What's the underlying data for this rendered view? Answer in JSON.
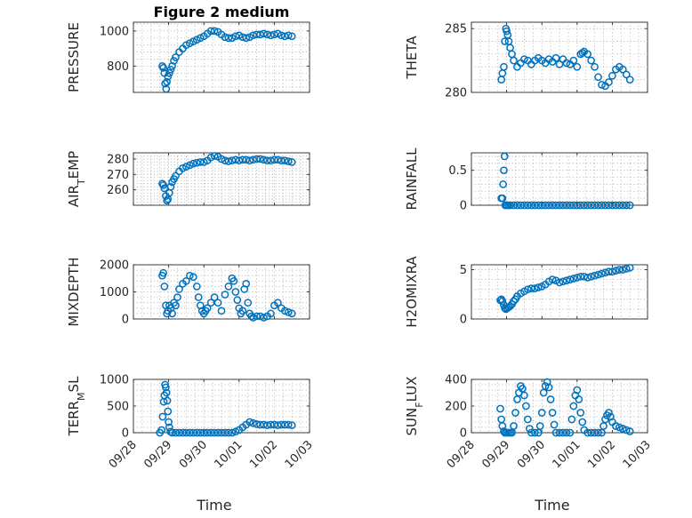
{
  "chart_data": [
    {
      "type": "scatter",
      "title": "Figure 2 medium",
      "ylabel_parts": [
        {
          "t": "PRESSURE"
        }
      ],
      "ylim": [
        650,
        1050
      ],
      "yticks": [
        800,
        1000
      ],
      "ytick_labels": [
        "800",
        "1000"
      ],
      "xticks": [
        "09/28",
        "09/29",
        "09/30",
        "10/01",
        "10/02",
        "10/03"
      ],
      "x": [
        0.82,
        0.85,
        0.88,
        0.9,
        0.93,
        0.95,
        0.98,
        1.02,
        1.06,
        1.1,
        1.15,
        1.2,
        1.3,
        1.4,
        1.5,
        1.6,
        1.7,
        1.8,
        1.9,
        2.0,
        2.1,
        2.2,
        2.3,
        2.4,
        2.5,
        2.6,
        2.7,
        2.8,
        2.9,
        3.0,
        3.1,
        3.2,
        3.3,
        3.4,
        3.5,
        3.6,
        3.7,
        3.8,
        3.9,
        4.0,
        4.1,
        4.2,
        4.3,
        4.4,
        4.5
      ],
      "y": [
        800,
        790,
        760,
        700,
        670,
        710,
        740,
        760,
        780,
        800,
        830,
        850,
        880,
        900,
        920,
        930,
        940,
        950,
        960,
        970,
        985,
        1000,
        1000,
        995,
        980,
        965,
        960,
        960,
        970,
        975,
        965,
        960,
        965,
        975,
        980,
        980,
        985,
        980,
        975,
        980,
        985,
        975,
        970,
        975,
        970
      ]
    },
    {
      "type": "scatter",
      "title": "",
      "ylabel_parts": [
        {
          "t": "THETA"
        }
      ],
      "ylim": [
        280,
        285.5
      ],
      "yticks": [
        280,
        285
      ],
      "ytick_labels": [
        "280",
        "285"
      ],
      "xticks": [
        "09/28",
        "09/29",
        "09/30",
        "10/01",
        "10/02",
        "10/03"
      ],
      "x": [
        0.85,
        0.88,
        0.92,
        0.95,
        0.98,
        1.0,
        1.03,
        1.06,
        1.1,
        1.15,
        1.2,
        1.3,
        1.4,
        1.5,
        1.6,
        1.7,
        1.8,
        1.9,
        2.0,
        2.1,
        2.2,
        2.3,
        2.4,
        2.5,
        2.6,
        2.7,
        2.8,
        2.9,
        3.0,
        3.1,
        3.15,
        3.2,
        3.3,
        3.4,
        3.5,
        3.6,
        3.7,
        3.8,
        3.9,
        4.0,
        4.1,
        4.2,
        4.3,
        4.4,
        4.5
      ],
      "y": [
        281,
        281.5,
        282,
        284,
        285,
        284.8,
        284.5,
        284,
        283.5,
        283,
        282.5,
        282,
        282.3,
        282.6,
        282.5,
        282.2,
        282.5,
        282.7,
        282.5,
        282.3,
        282.6,
        282.4,
        282.7,
        282.2,
        282.6,
        282.3,
        282.2,
        282.5,
        282.0,
        283.0,
        283.1,
        283.2,
        283.0,
        282.5,
        282.0,
        281.2,
        280.6,
        280.5,
        280.8,
        281.3,
        281.8,
        282.0,
        281.8,
        281.4,
        281.0
      ]
    },
    {
      "type": "scatter",
      "title": "",
      "ylabel_parts": [
        {
          "t": "AIR"
        },
        {
          "t": "T",
          "sub": true
        },
        {
          "t": "EMP"
        }
      ],
      "ylim": [
        250,
        284
      ],
      "yticks": [
        260,
        270,
        280
      ],
      "ytick_labels": [
        "260",
        "270",
        "280"
      ],
      "xticks": [
        "09/28",
        "09/29",
        "09/30",
        "10/01",
        "10/02",
        "10/03"
      ],
      "x": [
        0.82,
        0.85,
        0.88,
        0.92,
        0.95,
        0.98,
        1.02,
        1.06,
        1.1,
        1.15,
        1.2,
        1.3,
        1.4,
        1.5,
        1.6,
        1.7,
        1.8,
        1.9,
        2.0,
        2.1,
        2.2,
        2.3,
        2.4,
        2.5,
        2.6,
        2.7,
        2.8,
        2.9,
        3.0,
        3.1,
        3.2,
        3.3,
        3.4,
        3.5,
        3.6,
        3.7,
        3.8,
        3.9,
        4.0,
        4.1,
        4.2,
        4.3,
        4.4,
        4.5
      ],
      "y": [
        264,
        263,
        261,
        256,
        253,
        254,
        258,
        262,
        265,
        267,
        269,
        272,
        274,
        275,
        276,
        277,
        277.5,
        278,
        278,
        279,
        281,
        282,
        281.5,
        280,
        279,
        278.5,
        279,
        279.5,
        279,
        279.5,
        279.5,
        279,
        279.5,
        280,
        280,
        279.5,
        279,
        279,
        279.5,
        279.5,
        279,
        279,
        278.5,
        278
      ]
    },
    {
      "type": "scatter",
      "title": "",
      "ylabel_parts": [
        {
          "t": "RAINFALL"
        }
      ],
      "ylim": [
        0,
        0.75
      ],
      "yticks": [
        0,
        0.5
      ],
      "ytick_labels": [
        "0",
        "0.5"
      ],
      "xticks": [
        "09/28",
        "09/29",
        "09/30",
        "10/01",
        "10/02",
        "10/03"
      ],
      "x": [
        0.85,
        0.88,
        0.9,
        0.92,
        0.94,
        0.96,
        1.0,
        1.05,
        1.1,
        1.2,
        1.3,
        1.4,
        1.5,
        1.6,
        1.7,
        1.8,
        1.9,
        2.0,
        2.1,
        2.2,
        2.3,
        2.4,
        2.5,
        2.6,
        2.7,
        2.8,
        2.9,
        3.0,
        3.1,
        3.2,
        3.3,
        3.4,
        3.5,
        3.6,
        3.7,
        3.8,
        3.9,
        4.0,
        4.1,
        4.2,
        4.3,
        4.4,
        4.5
      ],
      "y": [
        0.1,
        0.1,
        0.3,
        0.5,
        0.7,
        0,
        0,
        0,
        0,
        0,
        0,
        0,
        0,
        0,
        0,
        0,
        0,
        0,
        0,
        0,
        0,
        0,
        0,
        0,
        0,
        0,
        0,
        0,
        0,
        0,
        0,
        0,
        0,
        0,
        0,
        0,
        0,
        0,
        0,
        0,
        0,
        0,
        0
      ]
    },
    {
      "type": "scatter",
      "title": "",
      "ylabel_parts": [
        {
          "t": "MIXDEPTH"
        }
      ],
      "ylim": [
        0,
        2000
      ],
      "yticks": [
        0,
        1000,
        2000
      ],
      "ytick_labels": [
        "0",
        "1000",
        "2000"
      ],
      "xticks": [
        "09/28",
        "09/29",
        "09/30",
        "10/01",
        "10/02",
        "10/03"
      ],
      "x": [
        0.82,
        0.85,
        0.88,
        0.92,
        0.95,
        0.98,
        1.02,
        1.06,
        1.1,
        1.15,
        1.2,
        1.25,
        1.3,
        1.4,
        1.5,
        1.6,
        1.7,
        1.8,
        1.85,
        1.9,
        1.95,
        2.0,
        2.05,
        2.1,
        2.2,
        2.3,
        2.4,
        2.5,
        2.6,
        2.7,
        2.8,
        2.85,
        2.9,
        2.95,
        3.0,
        3.05,
        3.1,
        3.15,
        3.2,
        3.25,
        3.3,
        3.35,
        3.4,
        3.5,
        3.6,
        3.7,
        3.8,
        3.9,
        4.0,
        4.1,
        4.2,
        4.3,
        4.4,
        4.5
      ],
      "y": [
        1600,
        1700,
        1200,
        500,
        200,
        300,
        500,
        400,
        200,
        600,
        500,
        800,
        1100,
        1300,
        1400,
        1600,
        1550,
        1200,
        800,
        500,
        300,
        200,
        300,
        400,
        600,
        800,
        600,
        300,
        900,
        1200,
        1500,
        1400,
        1000,
        700,
        400,
        200,
        300,
        1100,
        1300,
        600,
        200,
        100,
        50,
        100,
        100,
        50,
        100,
        200,
        500,
        600,
        400,
        300,
        250,
        200
      ]
    },
    {
      "type": "scatter",
      "title": "",
      "ylabel_parts": [
        {
          "t": "H2OMIXRA"
        }
      ],
      "ylim": [
        0,
        5.5
      ],
      "yticks": [
        0,
        5
      ],
      "ytick_labels": [
        "0",
        "5"
      ],
      "xticks": [
        "09/28",
        "09/29",
        "09/30",
        "10/01",
        "10/02",
        "10/03"
      ],
      "x": [
        0.82,
        0.85,
        0.88,
        0.92,
        0.95,
        0.98,
        1.02,
        1.06,
        1.1,
        1.15,
        1.2,
        1.25,
        1.3,
        1.4,
        1.5,
        1.6,
        1.7,
        1.8,
        1.9,
        2.0,
        2.1,
        2.2,
        2.3,
        2.4,
        2.5,
        2.6,
        2.7,
        2.8,
        2.9,
        3.0,
        3.1,
        3.2,
        3.3,
        3.4,
        3.5,
        3.6,
        3.7,
        3.8,
        3.9,
        4.0,
        4.1,
        4.2,
        4.3,
        4.4,
        4.5
      ],
      "y": [
        1.9,
        2.0,
        1.8,
        1.4,
        1.1,
        1.0,
        1.1,
        1.2,
        1.3,
        1.5,
        1.8,
        2.0,
        2.3,
        2.6,
        2.8,
        3.0,
        3.1,
        3.1,
        3.2,
        3.3,
        3.5,
        3.8,
        4.0,
        3.9,
        3.7,
        3.8,
        3.9,
        4.0,
        4.1,
        4.2,
        4.3,
        4.3,
        4.2,
        4.3,
        4.4,
        4.5,
        4.6,
        4.7,
        4.8,
        4.8,
        4.9,
        5.0,
        5.0,
        5.1,
        5.2
      ]
    },
    {
      "type": "scatter",
      "title": "",
      "ylabel_parts": [
        {
          "t": "TERR"
        },
        {
          "t": "M",
          "sub": true
        },
        {
          "t": "SL"
        }
      ],
      "ylim": [
        0,
        1000
      ],
      "yticks": [
        0,
        500,
        1000
      ],
      "ytick_labels": [
        "0",
        "500",
        "1000"
      ],
      "xticks": [
        "09/28",
        "09/29",
        "09/30",
        "10/01",
        "10/02",
        "10/03"
      ],
      "x": [
        0.75,
        0.8,
        0.83,
        0.86,
        0.88,
        0.9,
        0.92,
        0.94,
        0.96,
        0.98,
        1.0,
        1.02,
        1.05,
        1.1,
        1.2,
        1.3,
        1.4,
        1.5,
        1.6,
        1.7,
        1.8,
        1.9,
        2.0,
        2.1,
        2.2,
        2.3,
        2.4,
        2.5,
        2.6,
        2.7,
        2.8,
        2.9,
        3.0,
        3.1,
        3.2,
        3.3,
        3.4,
        3.5,
        3.6,
        3.7,
        3.8,
        3.9,
        4.0,
        4.1,
        4.2,
        4.3,
        4.4,
        4.5
      ],
      "y": [
        0,
        50,
        300,
        580,
        700,
        900,
        850,
        750,
        600,
        400,
        200,
        100,
        20,
        0,
        0,
        0,
        0,
        0,
        0,
        0,
        0,
        0,
        0,
        0,
        0,
        0,
        0,
        0,
        0,
        0,
        0,
        20,
        50,
        100,
        150,
        200,
        180,
        160,
        150,
        150,
        140,
        150,
        150,
        140,
        150,
        150,
        150,
        140
      ]
    },
    {
      "type": "scatter",
      "title": "",
      "ylabel_parts": [
        {
          "t": "SUN"
        },
        {
          "t": "F",
          "sub": true
        },
        {
          "t": "LUX"
        }
      ],
      "ylim": [
        0,
        400
      ],
      "yticks": [
        0,
        200,
        400
      ],
      "ytick_labels": [
        "0",
        "200",
        "400"
      ],
      "xticks": [
        "09/28",
        "09/29",
        "09/30",
        "10/01",
        "10/02",
        "10/03"
      ],
      "x": [
        0.82,
        0.85,
        0.88,
        0.92,
        0.95,
        1.0,
        1.05,
        1.1,
        1.15,
        1.2,
        1.25,
        1.3,
        1.35,
        1.4,
        1.45,
        1.5,
        1.55,
        1.6,
        1.65,
        1.7,
        1.8,
        1.9,
        1.95,
        2.0,
        2.05,
        2.1,
        2.15,
        2.2,
        2.25,
        2.3,
        2.35,
        2.4,
        2.5,
        2.6,
        2.7,
        2.8,
        2.85,
        2.9,
        2.95,
        3.0,
        3.05,
        3.1,
        3.15,
        3.2,
        3.3,
        3.4,
        3.5,
        3.6,
        3.7,
        3.75,
        3.8,
        3.85,
        3.9,
        3.95,
        4.0,
        4.1,
        4.2,
        4.3,
        4.4,
        4.5
      ],
      "y": [
        180,
        100,
        50,
        10,
        0,
        0,
        0,
        0,
        0,
        50,
        150,
        250,
        300,
        350,
        330,
        280,
        200,
        100,
        30,
        0,
        0,
        0,
        50,
        150,
        300,
        350,
        380,
        340,
        250,
        150,
        60,
        0,
        0,
        0,
        0,
        0,
        100,
        200,
        280,
        320,
        250,
        150,
        80,
        20,
        0,
        0,
        0,
        0,
        0,
        50,
        100,
        130,
        150,
        120,
        80,
        50,
        40,
        30,
        20,
        10
      ]
    }
  ],
  "xlabel": "Time"
}
